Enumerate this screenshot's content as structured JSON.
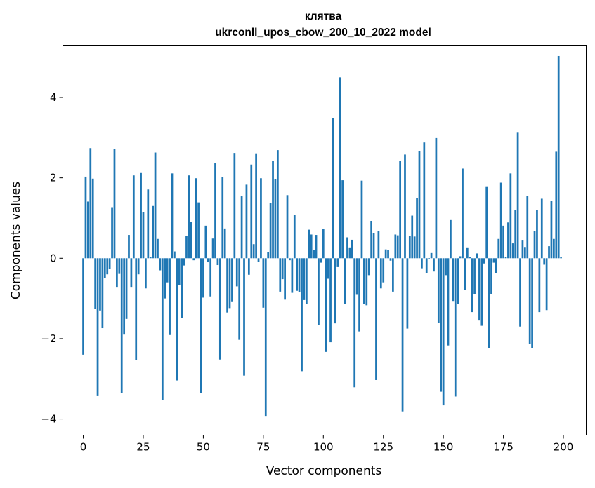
{
  "chart_data": {
    "type": "bar",
    "title": "клятва",
    "subtitle": "ukrconll_upos_cbow_200_10_2022 model",
    "xlabel": "Vector components",
    "ylabel": "Components values",
    "xlim": [
      -8.5,
      209.5
    ],
    "ylim": [
      -4.4,
      5.3
    ],
    "xticks": [
      0,
      25,
      50,
      75,
      100,
      125,
      150,
      175,
      200
    ],
    "yticks": [
      -4,
      -2,
      0,
      2,
      4
    ],
    "ytick_labels": [
      "−4",
      "−2",
      "0",
      "2",
      "4"
    ],
    "grid": false,
    "legend": "none",
    "color": "#1f77b4",
    "values": [
      -2.4,
      2.03,
      1.41,
      2.74,
      1.98,
      -1.26,
      -3.43,
      -1.3,
      -1.74,
      -0.5,
      -0.4,
      -0.27,
      1.27,
      2.71,
      -0.73,
      -0.39,
      -3.36,
      -1.9,
      -1.51,
      0.58,
      -0.73,
      2.06,
      -2.53,
      -0.4,
      2.12,
      1.14,
      -0.75,
      1.71,
      0.04,
      1.3,
      2.63,
      0.48,
      -0.3,
      -3.53,
      -1.0,
      -0.6,
      -1.91,
      2.11,
      0.17,
      -3.04,
      -0.66,
      -1.49,
      -0.18,
      0.56,
      2.06,
      0.91,
      -0.05,
      1.99,
      1.39,
      -3.36,
      -0.98,
      0.81,
      -0.1,
      -0.95,
      0.49,
      2.36,
      -0.17,
      -2.52,
      2.02,
      0.74,
      -1.35,
      -1.24,
      -1.09,
      2.62,
      -0.7,
      -2.03,
      1.54,
      -2.92,
      1.83,
      -0.41,
      2.33,
      0.35,
      2.61,
      -0.09,
      1.99,
      -1.23,
      -3.94,
      0.16,
      1.37,
      2.43,
      1.96,
      2.69,
      -0.83,
      -0.52,
      -1.03,
      1.57,
      -0.05,
      -0.86,
      1.08,
      -0.81,
      -0.85,
      -2.81,
      -1.04,
      -1.14,
      0.71,
      0.59,
      0.21,
      0.58,
      -1.66,
      -0.11,
      0.72,
      -2.33,
      -0.51,
      -2.09,
      3.48,
      -1.62,
      -0.22,
      4.5,
      1.94,
      -1.13,
      0.52,
      0.27,
      0.46,
      -3.21,
      -0.91,
      -1.82,
      1.93,
      -1.14,
      -1.17,
      -0.42,
      0.93,
      0.62,
      -3.03,
      0.67,
      -0.75,
      -0.6,
      0.22,
      0.2,
      -0.06,
      -0.83,
      0.59,
      0.57,
      2.43,
      -3.81,
      2.58,
      -1.75,
      0.56,
      1.06,
      0.54,
      1.5,
      2.66,
      -0.25,
      2.88,
      -0.37,
      -0.03,
      0.13,
      -0.33,
      2.99,
      -1.61,
      -3.32,
      -3.66,
      -0.42,
      -2.17,
      0.95,
      -1.08,
      -3.44,
      -1.14,
      0.05,
      2.23,
      -0.79,
      0.27,
      0.04,
      -1.34,
      -0.89,
      0.12,
      -1.55,
      -1.68,
      -0.13,
      1.79,
      -2.24,
      -0.89,
      -0.11,
      -0.37,
      0.48,
      1.88,
      0.81,
      0.03,
      0.89,
      2.11,
      0.37,
      1.2,
      3.14,
      -1.7,
      0.44,
      0.28,
      1.55,
      -2.14,
      -2.24,
      0.68,
      1.2,
      -1.34,
      1.48,
      -0.16,
      -1.29,
      0.3,
      1.43,
      0.48,
      2.65,
      5.03,
      0.02
    ]
  }
}
